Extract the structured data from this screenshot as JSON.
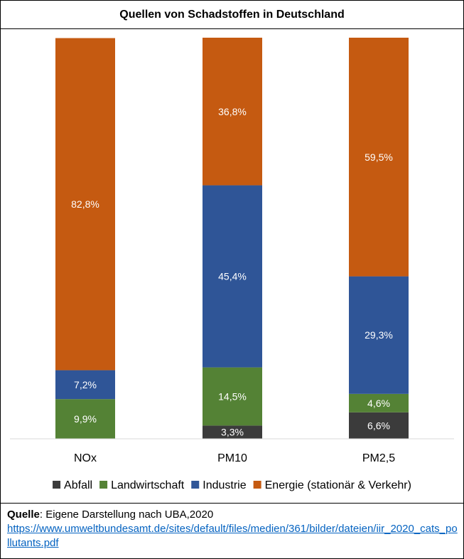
{
  "chart_data": {
    "type": "bar",
    "stacked": true,
    "title": "Quellen von Schadstoffen in Deutschland",
    "categories": [
      "NOx",
      "PM10",
      "PM2,5"
    ],
    "series": [
      {
        "name": "Abfall",
        "color": "#3b3b3b",
        "values": [
          0,
          3.3,
          6.6
        ],
        "labels": [
          "",
          "3,3%",
          "6,6%"
        ]
      },
      {
        "name": "Landwirtschaft",
        "color": "#548235",
        "values": [
          9.9,
          14.5,
          4.6
        ],
        "labels": [
          "9,9%",
          "14,5%",
          "4,6%"
        ]
      },
      {
        "name": "Industrie",
        "color": "#2f5597",
        "values": [
          7.2,
          45.4,
          29.3
        ],
        "labels": [
          "7,2%",
          "45,4%",
          "29,3%"
        ]
      },
      {
        "name": "Energie (stationär & Verkehr)",
        "color": "#c55a11",
        "values": [
          82.8,
          36.8,
          59.5
        ],
        "labels": [
          "82,8%",
          "36,8%",
          "59,5%"
        ]
      }
    ],
    "ylim": [
      0,
      100
    ],
    "xlabel": "",
    "ylabel": "",
    "grid": false,
    "legend_position": "bottom"
  },
  "footer": {
    "label": "Quelle",
    "text": ": Eigene Darstellung nach UBA,2020",
    "link": "https://www.umweltbundesamt.de/sites/default/files/medien/361/bilder/dateien/iir_2020_cats_pollutants.pdf"
  }
}
